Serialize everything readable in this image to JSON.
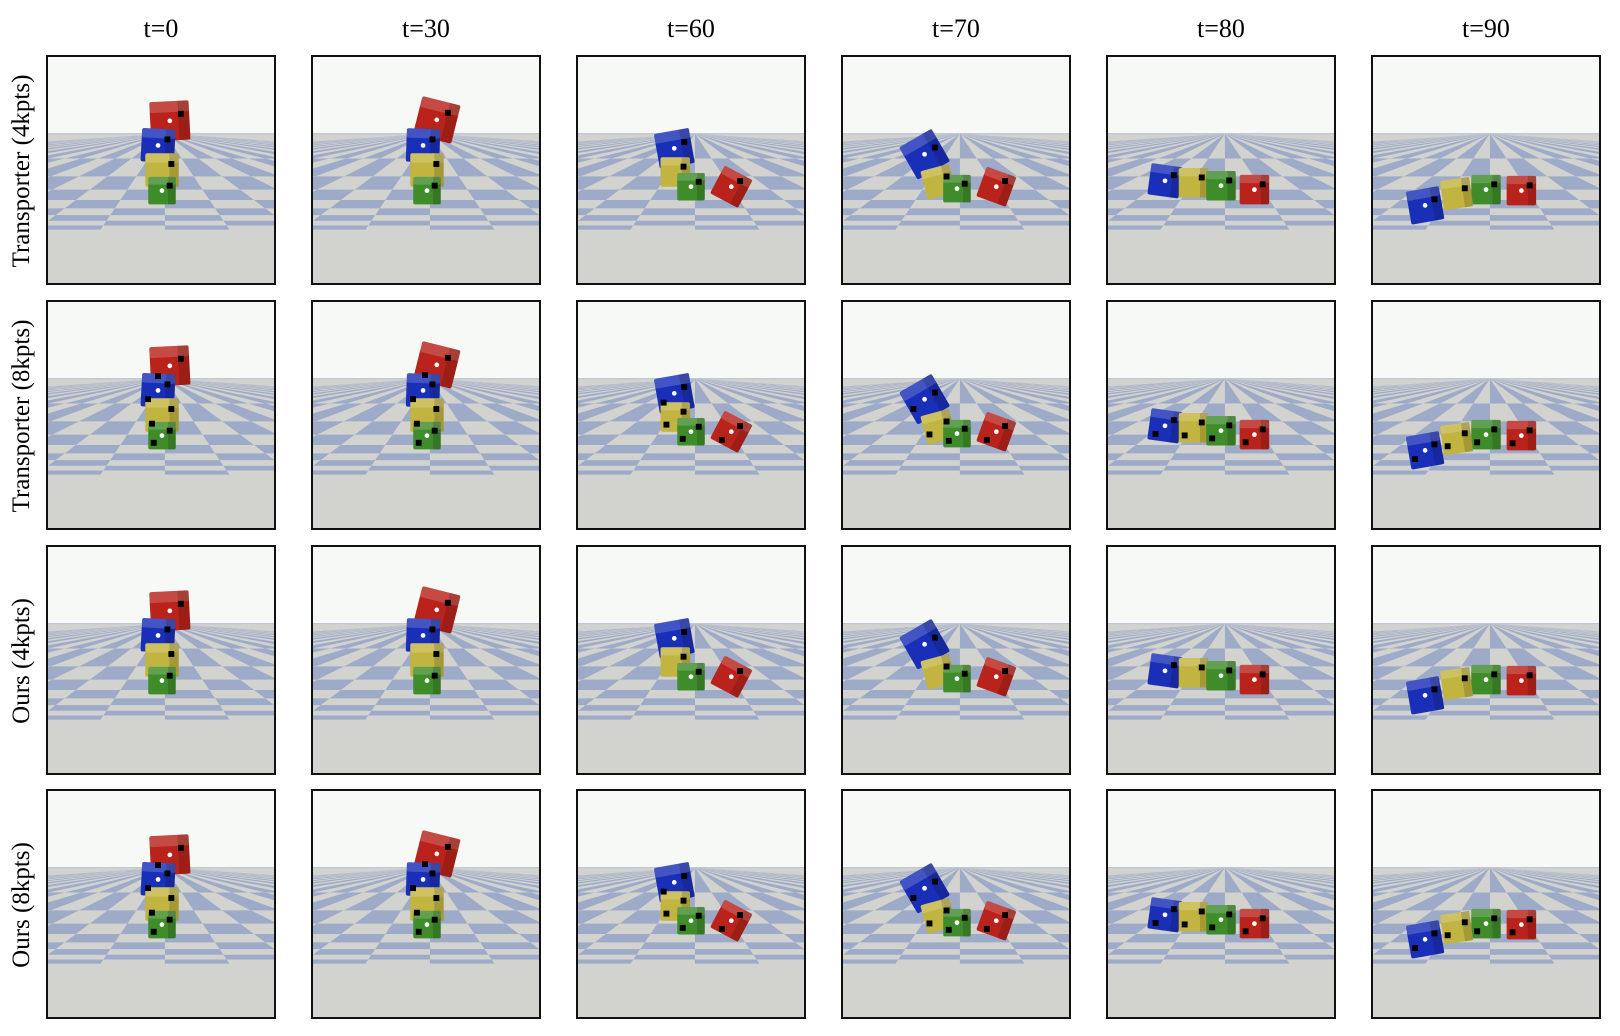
{
  "column_labels": [
    "t=0",
    "t=30",
    "t=60",
    "t=70",
    "t=80",
    "t=90"
  ],
  "row_labels": [
    "Transporter (4kpts)",
    "Transporter (8kpts)",
    "Ours (4kpts)",
    "Ours (8kpts)"
  ],
  "colors": {
    "sky": "#f7f9f6",
    "floor_light": "#d2d2cf",
    "floor_dark": "#98a6c6",
    "frame_border": "#111111",
    "cube_blue": "#1a2fb8",
    "cube_yellow": "#c2b440",
    "cube_green": "#3f8c2a",
    "cube_red": "#b9231c",
    "keypoint_black": "#000000",
    "keypoint_white": "#ffffff"
  },
  "scene": {
    "description_objects": [
      "blue-cube",
      "yellow-cube",
      "green-cube",
      "red-cube"
    ],
    "keypoint_counts_per_row": [
      4,
      8,
      4,
      8
    ]
  }
}
